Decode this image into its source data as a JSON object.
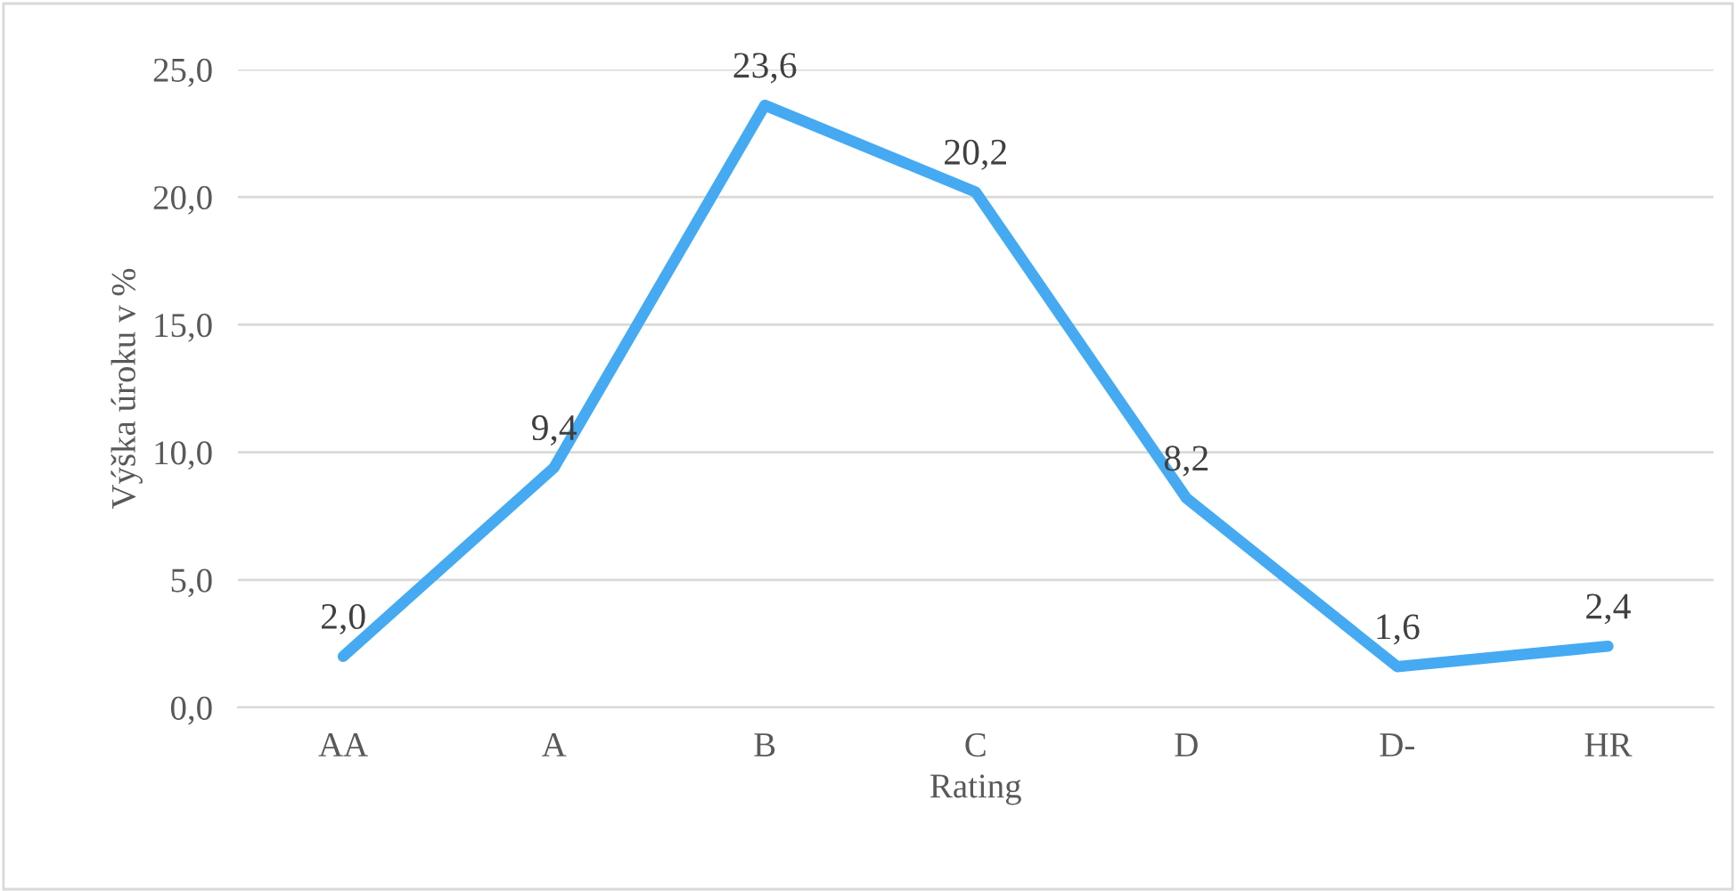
{
  "chart_data": {
    "type": "line",
    "xlabel": "Rating",
    "ylabel": "Výška úroku v %",
    "categories": [
      "AA",
      "A",
      "B",
      "C",
      "D",
      "D-",
      "HR"
    ],
    "series": [
      {
        "color": "#45aaf2",
        "values": [
          2.0,
          9.4,
          23.6,
          20.2,
          8.2,
          1.6,
          2.4
        ],
        "value_labels": [
          "2,0",
          "9,4",
          "23,6",
          "20,2",
          "8,2",
          "1,6",
          "2,4"
        ]
      }
    ],
    "ylim": [
      0,
      25
    ],
    "yticks": [
      {
        "value": 0,
        "label": "0,0"
      },
      {
        "value": 5,
        "label": "5,0"
      },
      {
        "value": 10,
        "label": "10,0"
      },
      {
        "value": 15,
        "label": "15,0"
      },
      {
        "value": 20,
        "label": "20,0"
      },
      {
        "value": 25,
        "label": "25,0"
      }
    ],
    "grid": "y",
    "legend": false,
    "marker": "none",
    "line_style": "solid"
  }
}
